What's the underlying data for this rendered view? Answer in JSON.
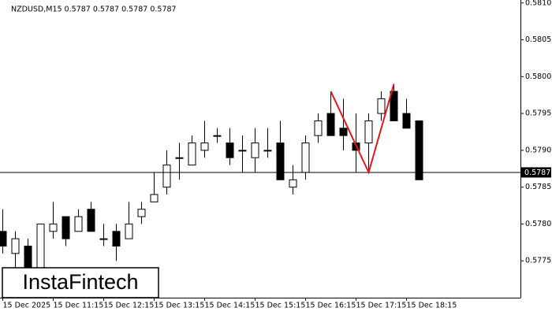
{
  "chart_data": {
    "type": "candlestick",
    "title": "NZDUSD,M15  0.5787 0.5787 0.5787 0.5787",
    "brand": "InstaFintech",
    "categories": [
      "15 Dec 2025",
      null,
      null,
      null,
      "15 Dec 11:15",
      null,
      null,
      null,
      "15 Dec 12:15",
      null,
      null,
      null,
      "15 Dec 13:15",
      null,
      null,
      null,
      "15 Dec 14:15",
      null,
      null,
      null,
      "15 Dec 15:15",
      null,
      null,
      null,
      "15 Dec 16:15",
      null,
      null,
      null,
      "15 Dec 17:15",
      null,
      null,
      null,
      "15 Dec 18:15",
      null
    ],
    "open": [
      0.5779,
      0.5776,
      0.5777,
      0.57735,
      0.5779,
      0.5781,
      0.5779,
      0.5782,
      0.5778,
      0.5779,
      0.5778,
      0.5781,
      0.5783,
      0.5785,
      0.5789,
      0.5788,
      0.579,
      0.5792,
      0.5791,
      0.579,
      0.5789,
      0.579,
      0.5791,
      0.5785,
      0.5787,
      0.5792,
      0.5795,
      0.5793,
      0.5791,
      0.5791,
      0.5795,
      0.5798,
      0.5795,
      0.5794
    ],
    "high": [
      0.5782,
      0.5779,
      0.5778,
      0.578,
      0.5783,
      0.5781,
      0.5782,
      0.5783,
      0.578,
      0.578,
      0.5783,
      0.5783,
      0.5787,
      0.579,
      0.5791,
      0.5792,
      0.5794,
      0.5793,
      0.5793,
      0.5792,
      0.5793,
      0.5793,
      0.5794,
      0.5788,
      0.5792,
      0.5795,
      0.5798,
      0.5797,
      0.5795,
      0.5795,
      0.5798,
      0.5799,
      0.5797,
      0.5794
    ],
    "low": [
      0.5776,
      0.5774,
      0.5773,
      0.5773,
      0.5778,
      0.5777,
      0.5779,
      0.5779,
      0.5777,
      0.5775,
      0.5778,
      0.578,
      0.5783,
      0.5784,
      0.5786,
      0.5788,
      0.5789,
      0.5791,
      0.5788,
      0.5787,
      0.5787,
      0.5789,
      0.5786,
      0.5784,
      0.5786,
      0.5791,
      0.5792,
      0.579,
      0.5787,
      0.5787,
      0.5794,
      0.5794,
      0.5793,
      0.5786
    ],
    "close": [
      0.5777,
      0.5778,
      0.57735,
      0.578,
      0.578,
      0.5778,
      0.5781,
      0.5779,
      0.5778,
      0.5777,
      0.578,
      0.5782,
      0.5784,
      0.5788,
      0.5789,
      0.5791,
      0.5791,
      0.5792,
      0.5789,
      0.579,
      0.5791,
      0.579,
      0.5786,
      0.5786,
      0.5791,
      0.5794,
      0.5792,
      0.5792,
      0.579,
      0.5794,
      0.5797,
      0.5794,
      0.5793,
      0.5786
    ],
    "up_color": "#ffffff",
    "down_color": "#000000",
    "last_price": 0.5787,
    "pattern": {
      "color": "#e8141b",
      "points": [
        [
          26,
          0.5798
        ],
        [
          29,
          0.5787
        ],
        [
          31,
          0.5799
        ]
      ]
    },
    "ylim": [
      0.577,
      0.58104
    ],
    "yticks": [
      0.5775,
      {
        "value": 0.578,
        "label": "0.5780"
      },
      0.5785,
      {
        "value": 0.579,
        "label": "0.5790"
      },
      0.5795,
      {
        "value": 0.58,
        "label": "0.5800"
      },
      0.5805,
      {
        "value": 0.581,
        "label": "0.5810"
      }
    ]
  }
}
